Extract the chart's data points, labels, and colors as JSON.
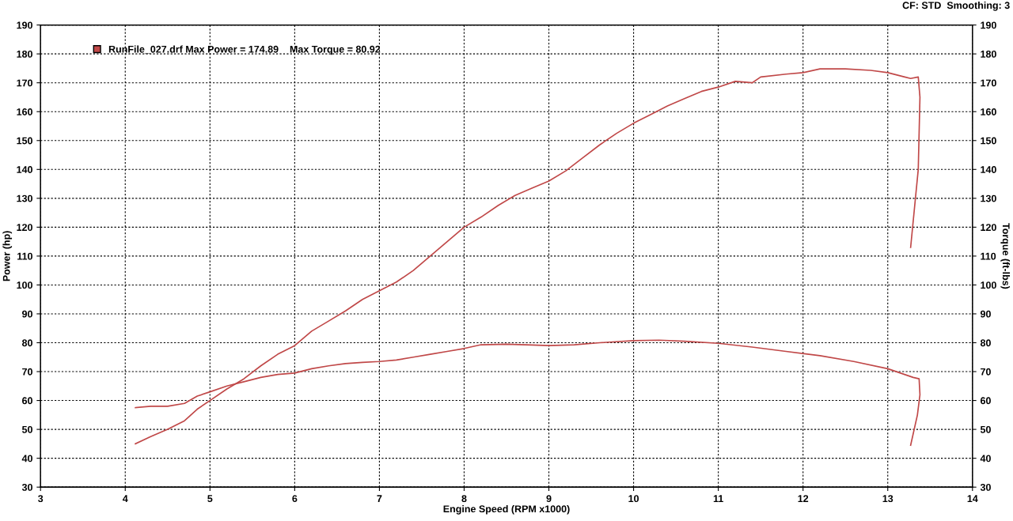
{
  "chart_data": {
    "type": "line",
    "xlabel": "Engine Speed (RPM x1000)",
    "ylabel": "Power (hp)",
    "y2label": "Torque (ft-lbs)",
    "annotations": [
      "CF: STD  Smoothing: 3"
    ],
    "xlim": [
      3,
      14
    ],
    "xticks": [
      3,
      4,
      5,
      6,
      7,
      8,
      9,
      10,
      11,
      12,
      13,
      14
    ],
    "ylim": [
      30,
      190
    ],
    "yticks": [
      30,
      40,
      50,
      60,
      70,
      80,
      90,
      100,
      110,
      120,
      130,
      140,
      150,
      160,
      170,
      180,
      190
    ],
    "y2lim": [
      30,
      190
    ],
    "y2ticks": [
      30,
      40,
      50,
      60,
      70,
      80,
      90,
      100,
      110,
      120,
      130,
      140,
      150,
      160,
      170,
      180,
      190
    ],
    "grid": true,
    "legend": "top left",
    "line_style": "solid",
    "marker": "none",
    "series": [
      {
        "name": "RunFile_027.drf Max Power = 174.89    Max Torque = 80.92",
        "color": "#c04848",
        "x": [
          4.12,
          4.3,
          4.5,
          4.7,
          4.85,
          5.0,
          5.2,
          5.4,
          5.6,
          5.8,
          6.0,
          6.2,
          6.4,
          6.6,
          6.8,
          7.0,
          7.2,
          7.4,
          7.6,
          7.8,
          8.0,
          8.2,
          8.4,
          8.6,
          8.8,
          9.0,
          9.2,
          9.4,
          9.6,
          9.8,
          10.0,
          10.2,
          10.4,
          10.6,
          10.8,
          11.0,
          11.2,
          11.4,
          11.5,
          11.8,
          12.0,
          12.2,
          12.5,
          12.8,
          13.0,
          13.2,
          13.27,
          13.36,
          13.38,
          13.36,
          13.27
        ],
        "values": [
          45,
          47.5,
          50,
          53,
          57,
          60,
          64,
          67.5,
          72,
          76,
          79,
          84,
          87.5,
          91,
          95,
          98,
          101,
          105,
          110,
          115,
          120,
          123.5,
          127.5,
          131,
          133.5,
          136,
          139.5,
          144,
          148.5,
          152.5,
          156,
          159,
          162,
          164.5,
          167,
          168.5,
          170.5,
          170,
          172,
          173,
          173.5,
          174.8,
          174.8,
          174.3,
          173.5,
          172,
          171.5,
          172,
          165,
          140,
          113
        ]
      },
      {
        "color": "#c04848",
        "axis": "y2",
        "x": [
          4.12,
          4.3,
          4.5,
          4.7,
          4.85,
          5.0,
          5.2,
          5.4,
          5.6,
          5.8,
          6.0,
          6.2,
          6.4,
          6.6,
          6.8,
          7.0,
          7.2,
          7.4,
          7.6,
          7.8,
          8.0,
          8.2,
          8.5,
          8.8,
          9.0,
          9.3,
          9.6,
          10.0,
          10.3,
          10.6,
          11.0,
          11.4,
          11.8,
          12.2,
          12.6,
          13.0,
          13.3,
          13.37,
          13.38,
          13.35,
          13.27
        ],
        "values": [
          57.5,
          58,
          58,
          59,
          61.5,
          63,
          65,
          66.5,
          68,
          69,
          69.5,
          71,
          72,
          72.8,
          73.2,
          73.5,
          74,
          75,
          76,
          77,
          78,
          79.3,
          79.5,
          79.2,
          79,
          79.3,
          80,
          80.7,
          80.9,
          80.5,
          79.8,
          78.5,
          77,
          75.5,
          73.5,
          71,
          68,
          67.5,
          62,
          55,
          44.5
        ]
      }
    ]
  }
}
